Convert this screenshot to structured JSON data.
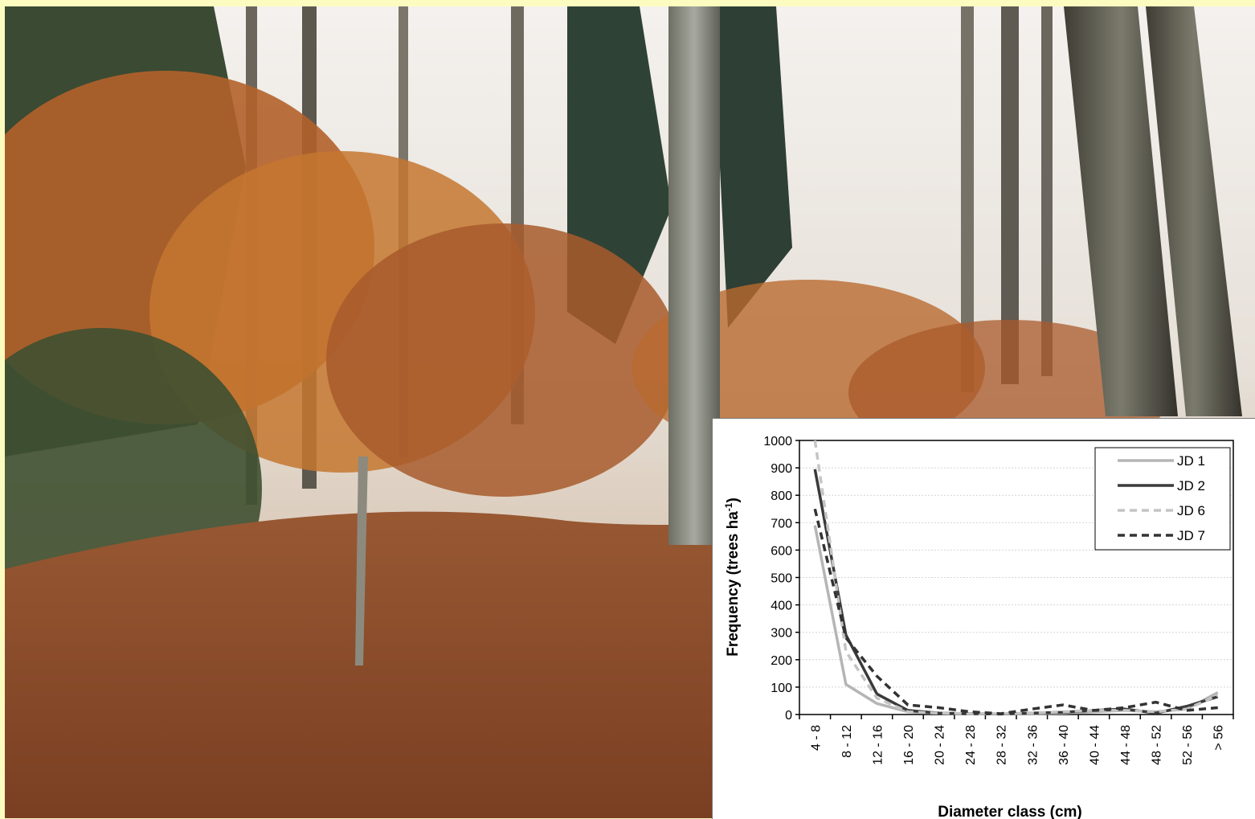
{
  "photo": {
    "subject": "autumn beech forest"
  },
  "colors": {
    "background_border": "#fdfcc0",
    "JD 1": "#b5b5b5",
    "JD 2": "#3a3a3a",
    "JD 6": "#c4c4c4",
    "JD 7": "#333333"
  },
  "chart_data": {
    "type": "line",
    "title": "",
    "xlabel": "Diameter class (cm)",
    "ylabel_main": "Frequency (trees ha",
    "ylabel_sup": "-1",
    "ylabel_end": ")",
    "ylim": [
      0,
      1000
    ],
    "yticks": [
      0,
      100,
      200,
      300,
      400,
      500,
      600,
      700,
      800,
      900,
      1000
    ],
    "grid": true,
    "legend_position": "top-right",
    "categories": [
      "4 - 8",
      "8 - 12",
      "12 - 16",
      "16 - 20",
      "20 - 24",
      "24 - 28",
      "28 - 32",
      "32 - 36",
      "36 - 40",
      "40 - 44",
      "44 - 48",
      "48 - 52",
      "52 - 56",
      "> 56"
    ],
    "series": [
      {
        "name": "JD 1",
        "style": "solid",
        "values": [
          690,
          110,
          40,
          10,
          5,
          3,
          2,
          3,
          5,
          10,
          15,
          10,
          20,
          80
        ]
      },
      {
        "name": "JD 2",
        "style": "solid",
        "values": [
          895,
          290,
          75,
          15,
          5,
          3,
          2,
          5,
          8,
          15,
          20,
          5,
          30,
          65
        ]
      },
      {
        "name": "JD 6",
        "style": "dashed",
        "values": [
          1000,
          230,
          60,
          10,
          5,
          3,
          3,
          5,
          10,
          15,
          15,
          10,
          20,
          70
        ]
      },
      {
        "name": "JD 7",
        "style": "dashed",
        "values": [
          750,
          280,
          140,
          35,
          25,
          10,
          3,
          20,
          35,
          15,
          25,
          45,
          15,
          25
        ]
      }
    ]
  }
}
